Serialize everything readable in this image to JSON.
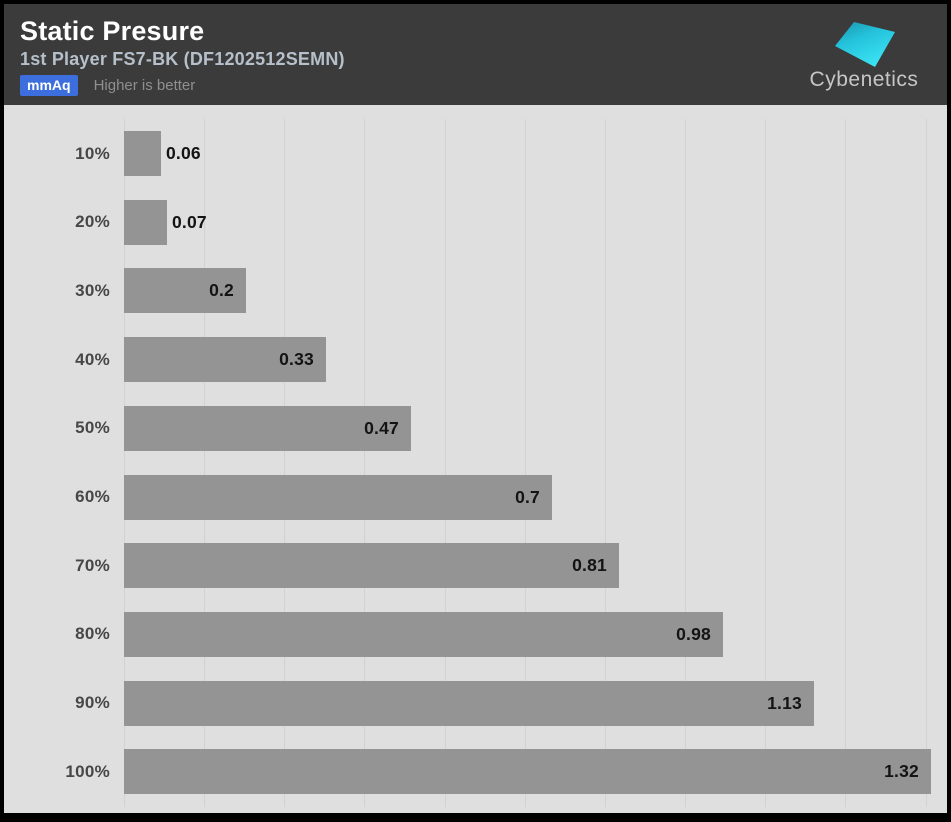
{
  "header": {
    "title": "Static Presure",
    "subtitle": "1st Player FS7-BK (DF1202512SEMN)",
    "unit_badge": "mmAq",
    "note": "Higher is better",
    "logo_text": "Cybenetics"
  },
  "colors": {
    "frame_bg": "#000000",
    "header_bg": "#3b3b3b",
    "chart_bg": "#dfdfdf",
    "bar": "#949494",
    "gridline": "#d2d2d2",
    "title": "#ffffff",
    "subtitle": "#b6c0ca",
    "badge_bg": "#3c6edd",
    "badge_text": "#ffffff",
    "note": "#8f8f8f",
    "category_label": "#474747",
    "value_label": "#141414",
    "logo_text": "#c6c6c6",
    "logo_gradient_start": "#1b93ac",
    "logo_gradient_end": "#3ae2f2"
  },
  "chart_data": {
    "type": "bar",
    "orientation": "horizontal",
    "title": "Static Presure",
    "subtitle": "1st Player FS7-BK (DF1202512SEMN)",
    "unit": "mmAq",
    "note": "Higher is better",
    "categories": [
      "10%",
      "20%",
      "30%",
      "40%",
      "50%",
      "60%",
      "70%",
      "80%",
      "90%",
      "100%"
    ],
    "values": [
      0.06,
      0.07,
      0.2,
      0.33,
      0.47,
      0.7,
      0.81,
      0.98,
      1.13,
      1.32
    ],
    "xlabel": "",
    "ylabel": "",
    "xlim": [
      0,
      1.31
    ],
    "grid": true,
    "gridline_count": 11,
    "legend_position": "none",
    "value_labels": true,
    "value_label_position": "inside-end, outside-end for narrow bars"
  }
}
